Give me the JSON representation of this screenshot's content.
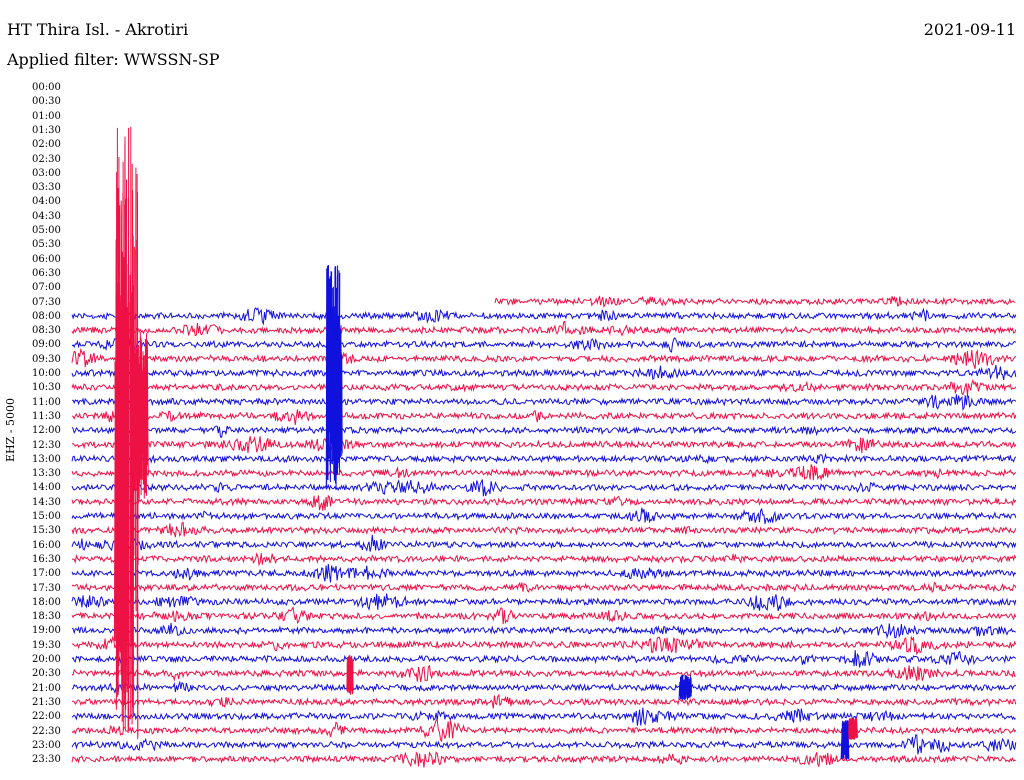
{
  "header": {
    "station": "HT Thira Isl. - Akrotiri",
    "date": "2021-09-11",
    "filter": "Applied filter: WWSSN-SP"
  },
  "axis": {
    "channel": "EHZ - 5000"
  },
  "time_labels": [
    "00:00",
    "00:30",
    "01:00",
    "01:30",
    "02:00",
    "02:30",
    "03:00",
    "03:30",
    "04:00",
    "04:30",
    "05:00",
    "05:30",
    "06:00",
    "06:30",
    "07:00",
    "07:30",
    "08:00",
    "08:30",
    "09:00",
    "09:30",
    "10:00",
    "10:30",
    "11:00",
    "11:30",
    "12:00",
    "12:30",
    "13:00",
    "13:30",
    "14:00",
    "14:30",
    "15:00",
    "15:30",
    "16:00",
    "16:30",
    "17:00",
    "17:30",
    "18:00",
    "18:30",
    "19:00",
    "19:30",
    "20:00",
    "20:30",
    "21:00",
    "21:30",
    "22:00",
    "22:30",
    "23:00",
    "23:30"
  ],
  "colors": {
    "trace_red": "#ee1144",
    "trace_blue": "#1111dd"
  }
}
